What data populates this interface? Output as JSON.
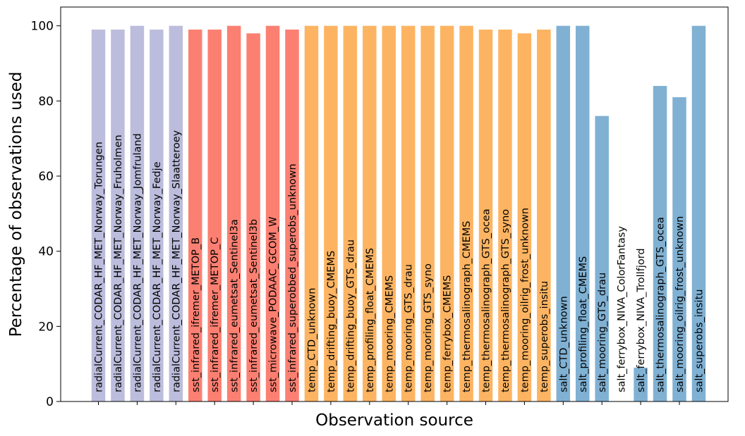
{
  "chart_data": {
    "type": "bar",
    "title": "",
    "xlabel": "Observation source",
    "ylabel": "Percentage of observations used",
    "ylim": [
      0,
      105
    ],
    "yticks": [
      0,
      20,
      40,
      60,
      80,
      100
    ],
    "grid": false,
    "legend": "none",
    "label_placement": "inside-bar-vertical",
    "colors": {
      "radialCurrent": "#bcbddc",
      "sst": "#fb8072",
      "temp": "#fdb462",
      "salt": "#80b1d3"
    },
    "bars": [
      {
        "label": "radialCurrent_CODAR_HF_MET_Norway_Torungen",
        "value": 99,
        "group": "radialCurrent"
      },
      {
        "label": "radialCurrent_CODAR_HF_MET_Norway_Fruholmen",
        "value": 99,
        "group": "radialCurrent"
      },
      {
        "label": "radialCurrent_CODAR_HF_MET_Norway_Jomfruland",
        "value": 100,
        "group": "radialCurrent"
      },
      {
        "label": "radialCurrent_CODAR_HF_MET_Norway_Fedje",
        "value": 99,
        "group": "radialCurrent"
      },
      {
        "label": "radialCurrent_CODAR_HF_MET_Norway_Slaatteroey",
        "value": 100,
        "group": "radialCurrent"
      },
      {
        "label": "sst_infrared_ifremer_METOP_B",
        "value": 99,
        "group": "sst"
      },
      {
        "label": "sst_infrared_ifremer_METOP_C",
        "value": 99,
        "group": "sst"
      },
      {
        "label": "sst_infrared_eumetsat_Sentinel3a",
        "value": 100,
        "group": "sst"
      },
      {
        "label": "sst_infrared_eumetsat_Sentinel3b",
        "value": 98,
        "group": "sst"
      },
      {
        "label": "sst_microwave_PODAAC_GCOM_W",
        "value": 100,
        "group": "sst"
      },
      {
        "label": "sst_infrared_superobbed_superobs_unknown",
        "value": 99,
        "group": "sst"
      },
      {
        "label": "temp_CTD_unknown",
        "value": 100,
        "group": "temp"
      },
      {
        "label": "temp_drifting_buoy_CMEMS",
        "value": 100,
        "group": "temp"
      },
      {
        "label": "temp_drifting_buoy_GTS_drau",
        "value": 100,
        "group": "temp"
      },
      {
        "label": "temp_profiling_float_CMEMS",
        "value": 100,
        "group": "temp"
      },
      {
        "label": "temp_mooring_CMEMS",
        "value": 100,
        "group": "temp"
      },
      {
        "label": "temp_mooring_GTS_drau",
        "value": 100,
        "group": "temp"
      },
      {
        "label": "temp_mooring_GTS_syno",
        "value": 100,
        "group": "temp"
      },
      {
        "label": "temp_ferrybox_CMEMS",
        "value": 100,
        "group": "temp"
      },
      {
        "label": "temp_thermosalinograph_CMEMS",
        "value": 100,
        "group": "temp"
      },
      {
        "label": "temp_thermosalinograph_GTS_ocea",
        "value": 99,
        "group": "temp"
      },
      {
        "label": "temp_thermosalinograph_GTS_syno",
        "value": 99,
        "group": "temp"
      },
      {
        "label": "temp_mooring_oilrig_frost_unknown",
        "value": 98,
        "group": "temp"
      },
      {
        "label": "temp_superobs_insitu",
        "value": 99,
        "group": "temp"
      },
      {
        "label": "salt_CTD_unknown",
        "value": 100,
        "group": "salt"
      },
      {
        "label": "salt_profiling_float_CMEMS",
        "value": 100,
        "group": "salt"
      },
      {
        "label": "salt_mooring_GTS_drau",
        "value": 76,
        "group": "salt"
      },
      {
        "label": "salt_ferrybox_NIVA_ColorFantasy",
        "value": 0,
        "group": "salt"
      },
      {
        "label": "salt_ferrybox_NIVA_Trollfjord",
        "value": 9,
        "group": "salt"
      },
      {
        "label": "salt_thermosalinograph_GTS_ocea",
        "value": 84,
        "group": "salt"
      },
      {
        "label": "salt_mooring_oilrig_frost_unknown",
        "value": 81,
        "group": "salt"
      },
      {
        "label": "salt_superobs_insitu",
        "value": 100,
        "group": "salt"
      }
    ]
  }
}
